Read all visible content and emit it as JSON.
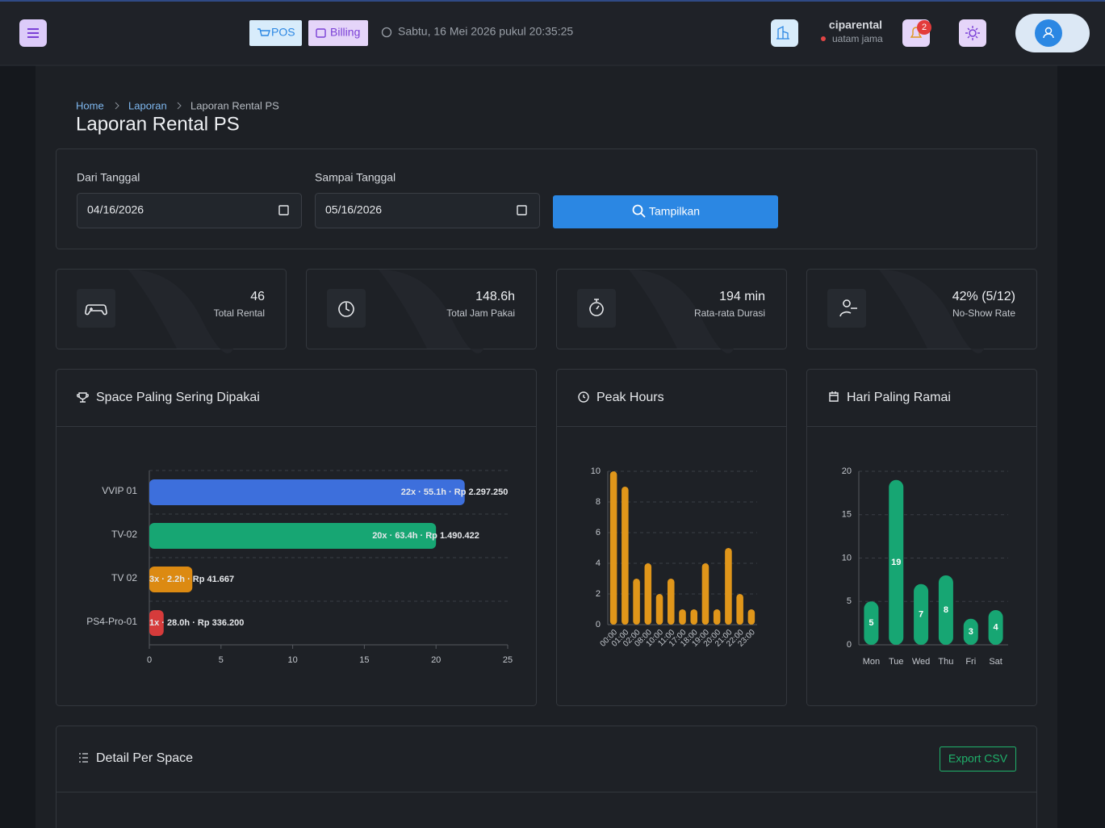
{
  "header": {
    "pos": "POS",
    "billing": "Billing",
    "datetime": "Sabtu, 16 Mei 2026 pukul 20:35:25",
    "user": "ciparental",
    "location": "uatam jama",
    "notifications": 2
  },
  "breadcrumb": [
    "Home",
    "Laporan",
    "Laporan Rental PS"
  ],
  "title": "Laporan Rental PS",
  "filter": {
    "from_label": "Dari Tanggal",
    "from": "04/16/2026",
    "to_label": "Sampai Tanggal",
    "to": "05/16/2026",
    "button": "Tampilkan"
  },
  "stats": [
    {
      "value": 46,
      "label": "Total Rental"
    },
    {
      "value": "148.6h",
      "label": "Total Jam Pakai"
    },
    {
      "value": "194 min",
      "label": "Rata-rata Durasi"
    },
    {
      "value": "42% (5/12)",
      "label": "No-Show Rate"
    }
  ],
  "chart_data": [
    {
      "type": "hbar",
      "title": "Space Paling Sering Dipakai",
      "categories": [
        "VVIP 01",
        "TV-02",
        "TV 02",
        "PS4-Pro-01"
      ],
      "values": [
        22,
        20,
        3,
        1
      ],
      "value_labels": [
        "22x · 55.1h · Rp 2.297.250",
        "20x · 63.4h · Rp 1.490.422",
        "3x · 2.2h · Rp 41.667",
        "1x · 28.0h · Rp 336.200"
      ],
      "colors": [
        "#3d6fdc",
        "#17a673",
        "#dc8a12",
        "#d63b3b"
      ],
      "xlim": [
        0,
        25
      ],
      "xticks": [
        0,
        5,
        10,
        15,
        20,
        25
      ]
    },
    {
      "type": "bar",
      "title": "Peak Hours",
      "categories": [
        "00:00",
        "01:00",
        "02:00",
        "08:00",
        "10:00",
        "11:00",
        "17:00",
        "18:00",
        "19:00",
        "20:00",
        "21:00",
        "22:00",
        "23:00"
      ],
      "values": [
        10,
        9,
        3,
        4,
        2,
        3,
        1,
        1,
        4,
        1,
        5,
        2,
        1
      ],
      "color": "#e0961a",
      "ylim": [
        0,
        10
      ],
      "yticks": [
        0,
        2,
        4,
        6,
        8,
        10
      ],
      "grid": true,
      "rotate_labels": true
    },
    {
      "type": "bar",
      "title": "Hari Paling Ramai",
      "categories": [
        "Mon",
        "Tue",
        "Wed",
        "Thu",
        "Fri",
        "Sat"
      ],
      "values": [
        5,
        19,
        7,
        8,
        3,
        4
      ],
      "color": "#17a673",
      "ylim": [
        0,
        20
      ],
      "yticks": [
        0,
        5,
        10,
        15,
        20
      ],
      "grid": true,
      "data_labels": true
    }
  ],
  "detail": {
    "title": "Detail Per Space",
    "export": "Export CSV"
  }
}
